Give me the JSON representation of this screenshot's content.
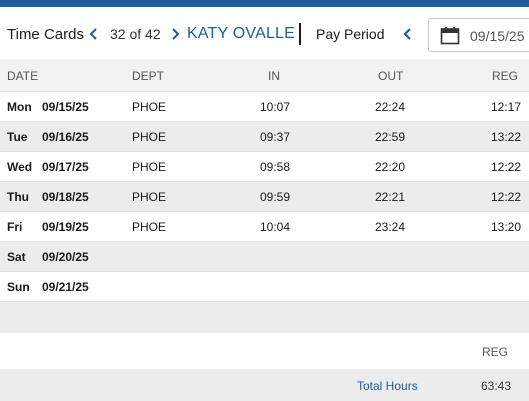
{
  "toolbar": {
    "title": "Time Cards",
    "record_position": "32 of 42",
    "employee_name": "KATY OVALLE",
    "pay_period_label": "Pay Period",
    "pay_period_date": "09/15/25"
  },
  "columns": {
    "date": "DATE",
    "dept": "DEPT",
    "in": "IN",
    "out": "OUT",
    "reg": "REG"
  },
  "rows": [
    {
      "day": "Mon",
      "date": "09/15/25",
      "dept": "PHOE",
      "in": "10:07",
      "out": "22:24",
      "reg": "12:17"
    },
    {
      "day": "Tue",
      "date": "09/16/25",
      "dept": "PHOE",
      "in": "09:37",
      "out": "22:59",
      "reg": "13:22"
    },
    {
      "day": "Wed",
      "date": "09/17/25",
      "dept": "PHOE",
      "in": "09:58",
      "out": "22:20",
      "reg": "12:22"
    },
    {
      "day": "Thu",
      "date": "09/18/25",
      "dept": "PHOE",
      "in": "09:59",
      "out": "22:21",
      "reg": "12:22"
    },
    {
      "day": "Fri",
      "date": "09/19/25",
      "dept": "PHOE",
      "in": "10:04",
      "out": "23:24",
      "reg": "13:20"
    },
    {
      "day": "Sat",
      "date": "09/20/25",
      "dept": "",
      "in": "",
      "out": "",
      "reg": ""
    },
    {
      "day": "Sun",
      "date": "09/21/25",
      "dept": "",
      "in": "",
      "out": "",
      "reg": ""
    }
  ],
  "summary": {
    "reg_header": "REG",
    "total_label": "Total Hours",
    "total_reg": "63:43"
  },
  "colors": {
    "accent": "#1f5c99",
    "row_alt": "#ececec"
  },
  "icons": {
    "prev": "chevron-left-icon",
    "next": "chevron-right-icon",
    "calendar": "calendar-icon"
  }
}
